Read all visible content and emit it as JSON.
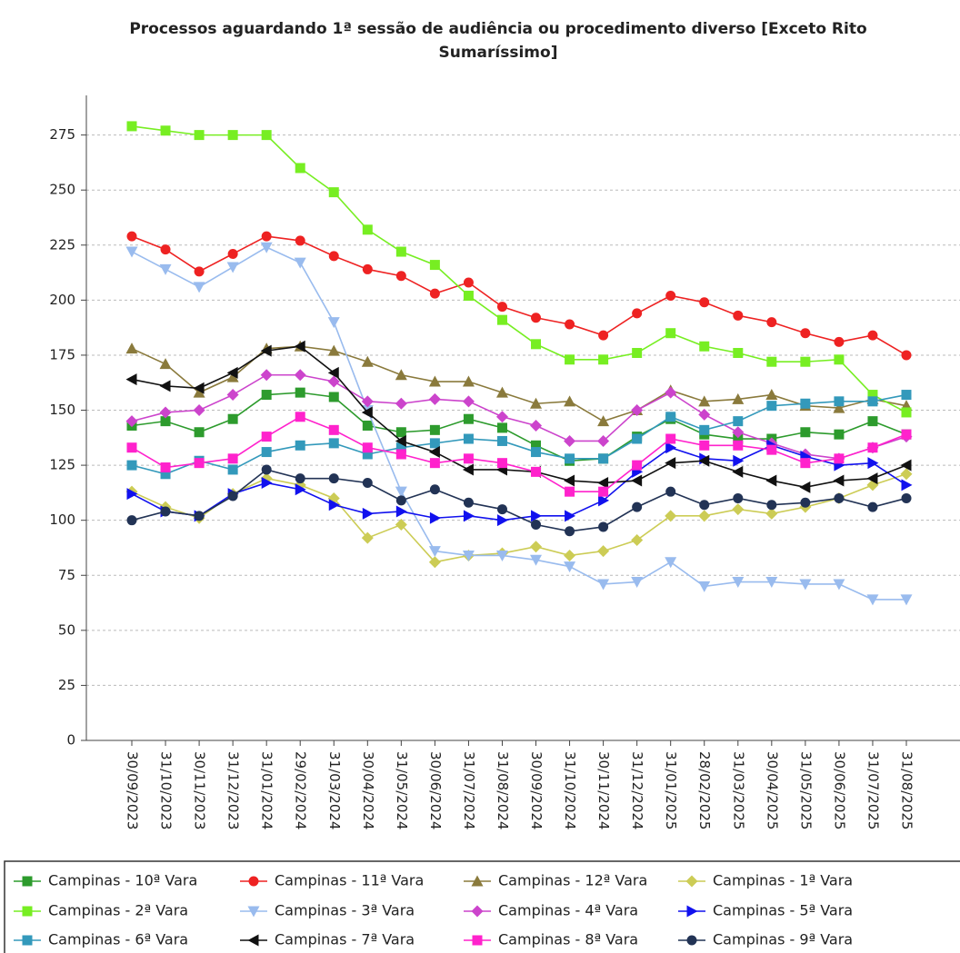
{
  "chart_data": {
    "type": "line",
    "title": [
      "Processos aguardando 1ª sessão de audiência ou procedimento diverso [Exceto Rito",
      "Sumaríssimo]"
    ],
    "categories": [
      "30/09/2023",
      "31/10/2023",
      "30/11/2023",
      "31/12/2023",
      "31/01/2024",
      "29/02/2024",
      "31/03/2024",
      "30/04/2024",
      "31/05/2024",
      "30/06/2024",
      "31/07/2024",
      "31/08/2024",
      "30/09/2024",
      "31/10/2024",
      "30/11/2024",
      "31/12/2024",
      "31/01/2025",
      "28/02/2025",
      "31/03/2025",
      "30/04/2025",
      "31/05/2025",
      "30/06/2025",
      "31/07/2025",
      "31/08/2025"
    ],
    "ylim": [
      0,
      293
    ],
    "yticks": [
      0,
      25,
      50,
      75,
      100,
      125,
      150,
      175,
      200,
      225,
      250,
      275
    ],
    "grid": true,
    "legend": "bottom",
    "series": [
      {
        "name": "Campinas - 10ª Vara",
        "color": "#2d9b2d",
        "marker": "square",
        "values": [
          143,
          145,
          140,
          146,
          157,
          158,
          156,
          143,
          140,
          141,
          146,
          142,
          134,
          127,
          128,
          138,
          146,
          139,
          137,
          137,
          140,
          139,
          145,
          139
        ]
      },
      {
        "name": "Campinas - 11ª Vara",
        "color": "#ee2222",
        "marker": "circle",
        "values": [
          229,
          223,
          213,
          221,
          229,
          227,
          220,
          214,
          211,
          203,
          208,
          197,
          192,
          189,
          184,
          194,
          202,
          199,
          193,
          190,
          185,
          181,
          184,
          175
        ]
      },
      {
        "name": "Campinas - 12ª Vara",
        "color": "#8a7a3c",
        "marker": "triangle-up",
        "values": [
          178,
          171,
          158,
          165,
          178,
          179,
          177,
          172,
          166,
          163,
          163,
          158,
          153,
          154,
          145,
          150,
          159,
          154,
          155,
          157,
          152,
          151,
          155,
          152
        ]
      },
      {
        "name": "Campinas - 1ª Vara",
        "color": "#cccc55",
        "marker": "diamond",
        "values": [
          113,
          106,
          101,
          112,
          119,
          116,
          110,
          92,
          98,
          81,
          84,
          85,
          88,
          84,
          86,
          91,
          102,
          102,
          105,
          103,
          106,
          110,
          116,
          121
        ]
      },
      {
        "name": "Campinas - 2ª Vara",
        "color": "#77ee22",
        "marker": "square",
        "values": [
          279,
          277,
          275,
          275,
          275,
          260,
          249,
          232,
          222,
          216,
          202,
          191,
          180,
          173,
          173,
          176,
          185,
          179,
          176,
          172,
          172,
          173,
          157,
          149
        ]
      },
      {
        "name": "Campinas - 3ª Vara",
        "color": "#99bbee",
        "marker": "triangle-down",
        "values": [
          222,
          214,
          206,
          215,
          224,
          217,
          190,
          150,
          113,
          86,
          84,
          84,
          82,
          79,
          71,
          72,
          81,
          70,
          72,
          72,
          71,
          71,
          64,
          64
        ]
      },
      {
        "name": "Campinas - 4ª Vara",
        "color": "#cc44cc",
        "marker": "diamond",
        "values": [
          145,
          149,
          150,
          157,
          166,
          166,
          163,
          154,
          153,
          155,
          154,
          147,
          143,
          136,
          136,
          150,
          158,
          148,
          140,
          135,
          130,
          128,
          133,
          138
        ]
      },
      {
        "name": "Campinas - 5ª Vara",
        "color": "#1111ee",
        "marker": "triangle-right",
        "values": [
          112,
          104,
          102,
          112,
          117,
          114,
          107,
          103,
          104,
          101,
          102,
          100,
          102,
          102,
          109,
          122,
          133,
          128,
          127,
          134,
          129,
          125,
          126,
          116
        ]
      },
      {
        "name": "Campinas - 6ª Vara",
        "color": "#3399bb",
        "marker": "square",
        "values": [
          125,
          121,
          127,
          123,
          131,
          134,
          135,
          130,
          133,
          135,
          137,
          136,
          131,
          128,
          128,
          137,
          147,
          141,
          145,
          152,
          153,
          154,
          154,
          157
        ]
      },
      {
        "name": "Campinas - 7ª Vara",
        "color": "#111111",
        "marker": "triangle-left",
        "values": [
          164,
          161,
          160,
          167,
          177,
          179,
          167,
          149,
          136,
          131,
          123,
          123,
          122,
          118,
          117,
          118,
          126,
          127,
          122,
          118,
          115,
          118,
          119,
          125
        ]
      },
      {
        "name": "Campinas - 8ª Vara",
        "color": "#ff22cc",
        "marker": "square",
        "values": [
          133,
          124,
          126,
          128,
          138,
          147,
          141,
          133,
          130,
          126,
          128,
          126,
          122,
          113,
          113,
          125,
          137,
          134,
          134,
          132,
          126,
          128,
          133,
          139
        ]
      },
      {
        "name": "Campinas - 9ª Vara",
        "color": "#223355",
        "marker": "circle",
        "values": [
          100,
          104,
          102,
          111,
          123,
          119,
          119,
          117,
          109,
          114,
          108,
          105,
          98,
          95,
          97,
          106,
          113,
          107,
          110,
          107,
          108,
          110,
          106,
          110
        ]
      }
    ]
  }
}
